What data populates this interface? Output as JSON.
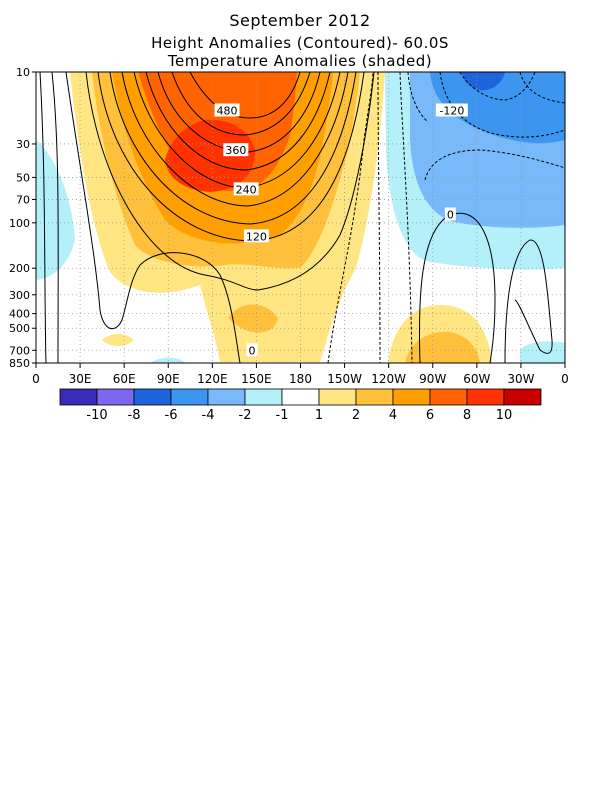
{
  "titles": {
    "line1": "September 2012",
    "line2": "Height Anomalies (Contoured)- 60.0S",
    "line3": "Temperature Anomalies (shaded)"
  },
  "chart_data": {
    "type": "heatmap",
    "description_axes": "longitude-pressure cross section",
    "x_tick_labels": [
      "0",
      "30E",
      "60E",
      "90E",
      "120E",
      "150E",
      "180",
      "150W",
      "120W",
      "90W",
      "60W",
      "30W",
      "0"
    ],
    "x_tick_lon": [
      0,
      30,
      60,
      90,
      120,
      150,
      180,
      210,
      240,
      270,
      300,
      330,
      360
    ],
    "y_tick_labels": [
      "10",
      "30",
      "50",
      "70",
      "100",
      "200",
      "300",
      "400",
      "500",
      "700",
      "850"
    ],
    "y_tick_hpa": [
      10,
      30,
      50,
      70,
      100,
      200,
      300,
      400,
      500,
      700,
      850
    ],
    "ylim_hpa": [
      850,
      10
    ],
    "y_scale": "log",
    "grid": true,
    "contour_labels": [
      {
        "text": "480",
        "lon": 130,
        "p": 18
      },
      {
        "text": "360",
        "lon": 136,
        "p": 33
      },
      {
        "text": "240",
        "lon": 143,
        "p": 60
      },
      {
        "text": "120",
        "lon": 150,
        "p": 123
      },
      {
        "text": "0",
        "lon": 147,
        "p": 700
      },
      {
        "text": "-120",
        "lon": 283,
        "p": 18
      },
      {
        "text": "0",
        "lon": 282,
        "p": 88
      }
    ],
    "colorbar": {
      "labels": [
        "-10",
        "-8",
        "-6",
        "-4",
        "-2",
        "-1",
        "1",
        "2",
        "4",
        "6",
        "8",
        "10"
      ],
      "colors": [
        "#3a2bb8",
        "#7b68ee",
        "#1e64dc",
        "#3c96f0",
        "#78b9fa",
        "#b4f0fa",
        "#ffffff",
        "#ffe682",
        "#ffc03c",
        "#ffa000",
        "#ff6400",
        "#ff3200",
        "#c80000"
      ]
    }
  }
}
